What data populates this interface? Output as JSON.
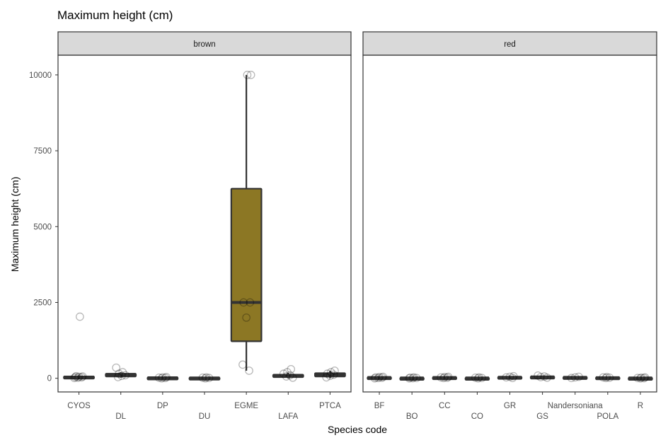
{
  "chart_data": {
    "type": "boxplot",
    "title": "Maximum height (cm)",
    "xlabel": "Species code",
    "ylabel": "Maximum height (cm)",
    "ylim": [
      -450,
      10650
    ],
    "yticks": [
      0,
      2500,
      5000,
      7500,
      10000
    ],
    "ytick_labels": [
      "0",
      "2500",
      "5000",
      "7500",
      "10000"
    ],
    "grid": false,
    "box_fill": "#8c7724",
    "panels": [
      {
        "label": "brown",
        "boxes": [
          {
            "category": "CYOS",
            "q1": 20,
            "median": 40,
            "q3": 60,
            "whisker_low": 0,
            "whisker_high": 100,
            "points": [
              10,
              20,
              30,
              40,
              50,
              60,
              70,
              2030
            ]
          },
          {
            "category": "DL",
            "q1": 60,
            "median": 100,
            "q3": 150,
            "whisker_low": 20,
            "whisker_high": 200,
            "points": [
              40,
              80,
              100,
              150,
              200,
              350
            ]
          },
          {
            "category": "DP",
            "q1": 0,
            "median": 15,
            "q3": 30,
            "whisker_low": 0,
            "whisker_high": 50,
            "points": [
              0,
              10,
              20,
              30,
              40
            ]
          },
          {
            "category": "DU",
            "q1": 0,
            "median": 10,
            "q3": 25,
            "whisker_low": 0,
            "whisker_high": 40,
            "points": [
              0,
              10,
              20,
              30
            ]
          },
          {
            "category": "EGME",
            "q1": 1220,
            "median": 2500,
            "q3": 6250,
            "whisker_low": 250,
            "whisker_high": 10000,
            "points": [
              250,
              450,
              2000,
              2500,
              2500,
              10000,
              10000
            ]
          },
          {
            "category": "LAFA",
            "q1": 40,
            "median": 80,
            "q3": 120,
            "whisker_low": 0,
            "whisker_high": 180,
            "points": [
              20,
              60,
              100,
              150,
              200,
              300
            ]
          },
          {
            "category": "PTCA",
            "q1": 60,
            "median": 120,
            "q3": 170,
            "whisker_low": 0,
            "whisker_high": 250,
            "points": [
              30,
              80,
              120,
              150,
              200,
              250
            ]
          }
        ]
      },
      {
        "label": "red",
        "boxes": [
          {
            "category": "BF",
            "q1": 10,
            "median": 25,
            "q3": 40,
            "whisker_low": 0,
            "whisker_high": 60,
            "points": [
              0,
              10,
              20,
              30,
              40,
              50
            ]
          },
          {
            "category": "BO",
            "q1": 0,
            "median": 10,
            "q3": 20,
            "whisker_low": 0,
            "whisker_high": 35,
            "points": [
              0,
              5,
              10,
              20,
              30
            ]
          },
          {
            "category": "CC",
            "q1": 10,
            "median": 25,
            "q3": 40,
            "whisker_low": 0,
            "whisker_high": 60,
            "points": [
              10,
              20,
              30,
              40,
              50
            ]
          },
          {
            "category": "CO",
            "q1": 0,
            "median": 10,
            "q3": 20,
            "whisker_low": 0,
            "whisker_high": 35,
            "points": [
              0,
              10,
              20,
              30
            ]
          },
          {
            "category": "GR",
            "q1": 20,
            "median": 35,
            "q3": 50,
            "whisker_low": 5,
            "whisker_high": 70,
            "points": [
              10,
              30,
              50,
              70
            ]
          },
          {
            "category": "GS",
            "q1": 30,
            "median": 45,
            "q3": 60,
            "whisker_low": 10,
            "whisker_high": 90,
            "points": [
              20,
              40,
              60,
              90
            ]
          },
          {
            "category": "Nandersoniana",
            "q1": 15,
            "median": 30,
            "q3": 45,
            "whisker_low": 0,
            "whisker_high": 60,
            "points": [
              10,
              30,
              50
            ]
          },
          {
            "category": "POLA",
            "q1": 10,
            "median": 20,
            "q3": 35,
            "whisker_low": 0,
            "whisker_high": 50,
            "points": [
              10,
              20,
              30,
              40
            ]
          },
          {
            "category": "R",
            "q1": 0,
            "median": 10,
            "q3": 20,
            "whisker_low": 0,
            "whisker_high": 35,
            "points": [
              0,
              5,
              10,
              20,
              30
            ]
          }
        ]
      }
    ]
  }
}
